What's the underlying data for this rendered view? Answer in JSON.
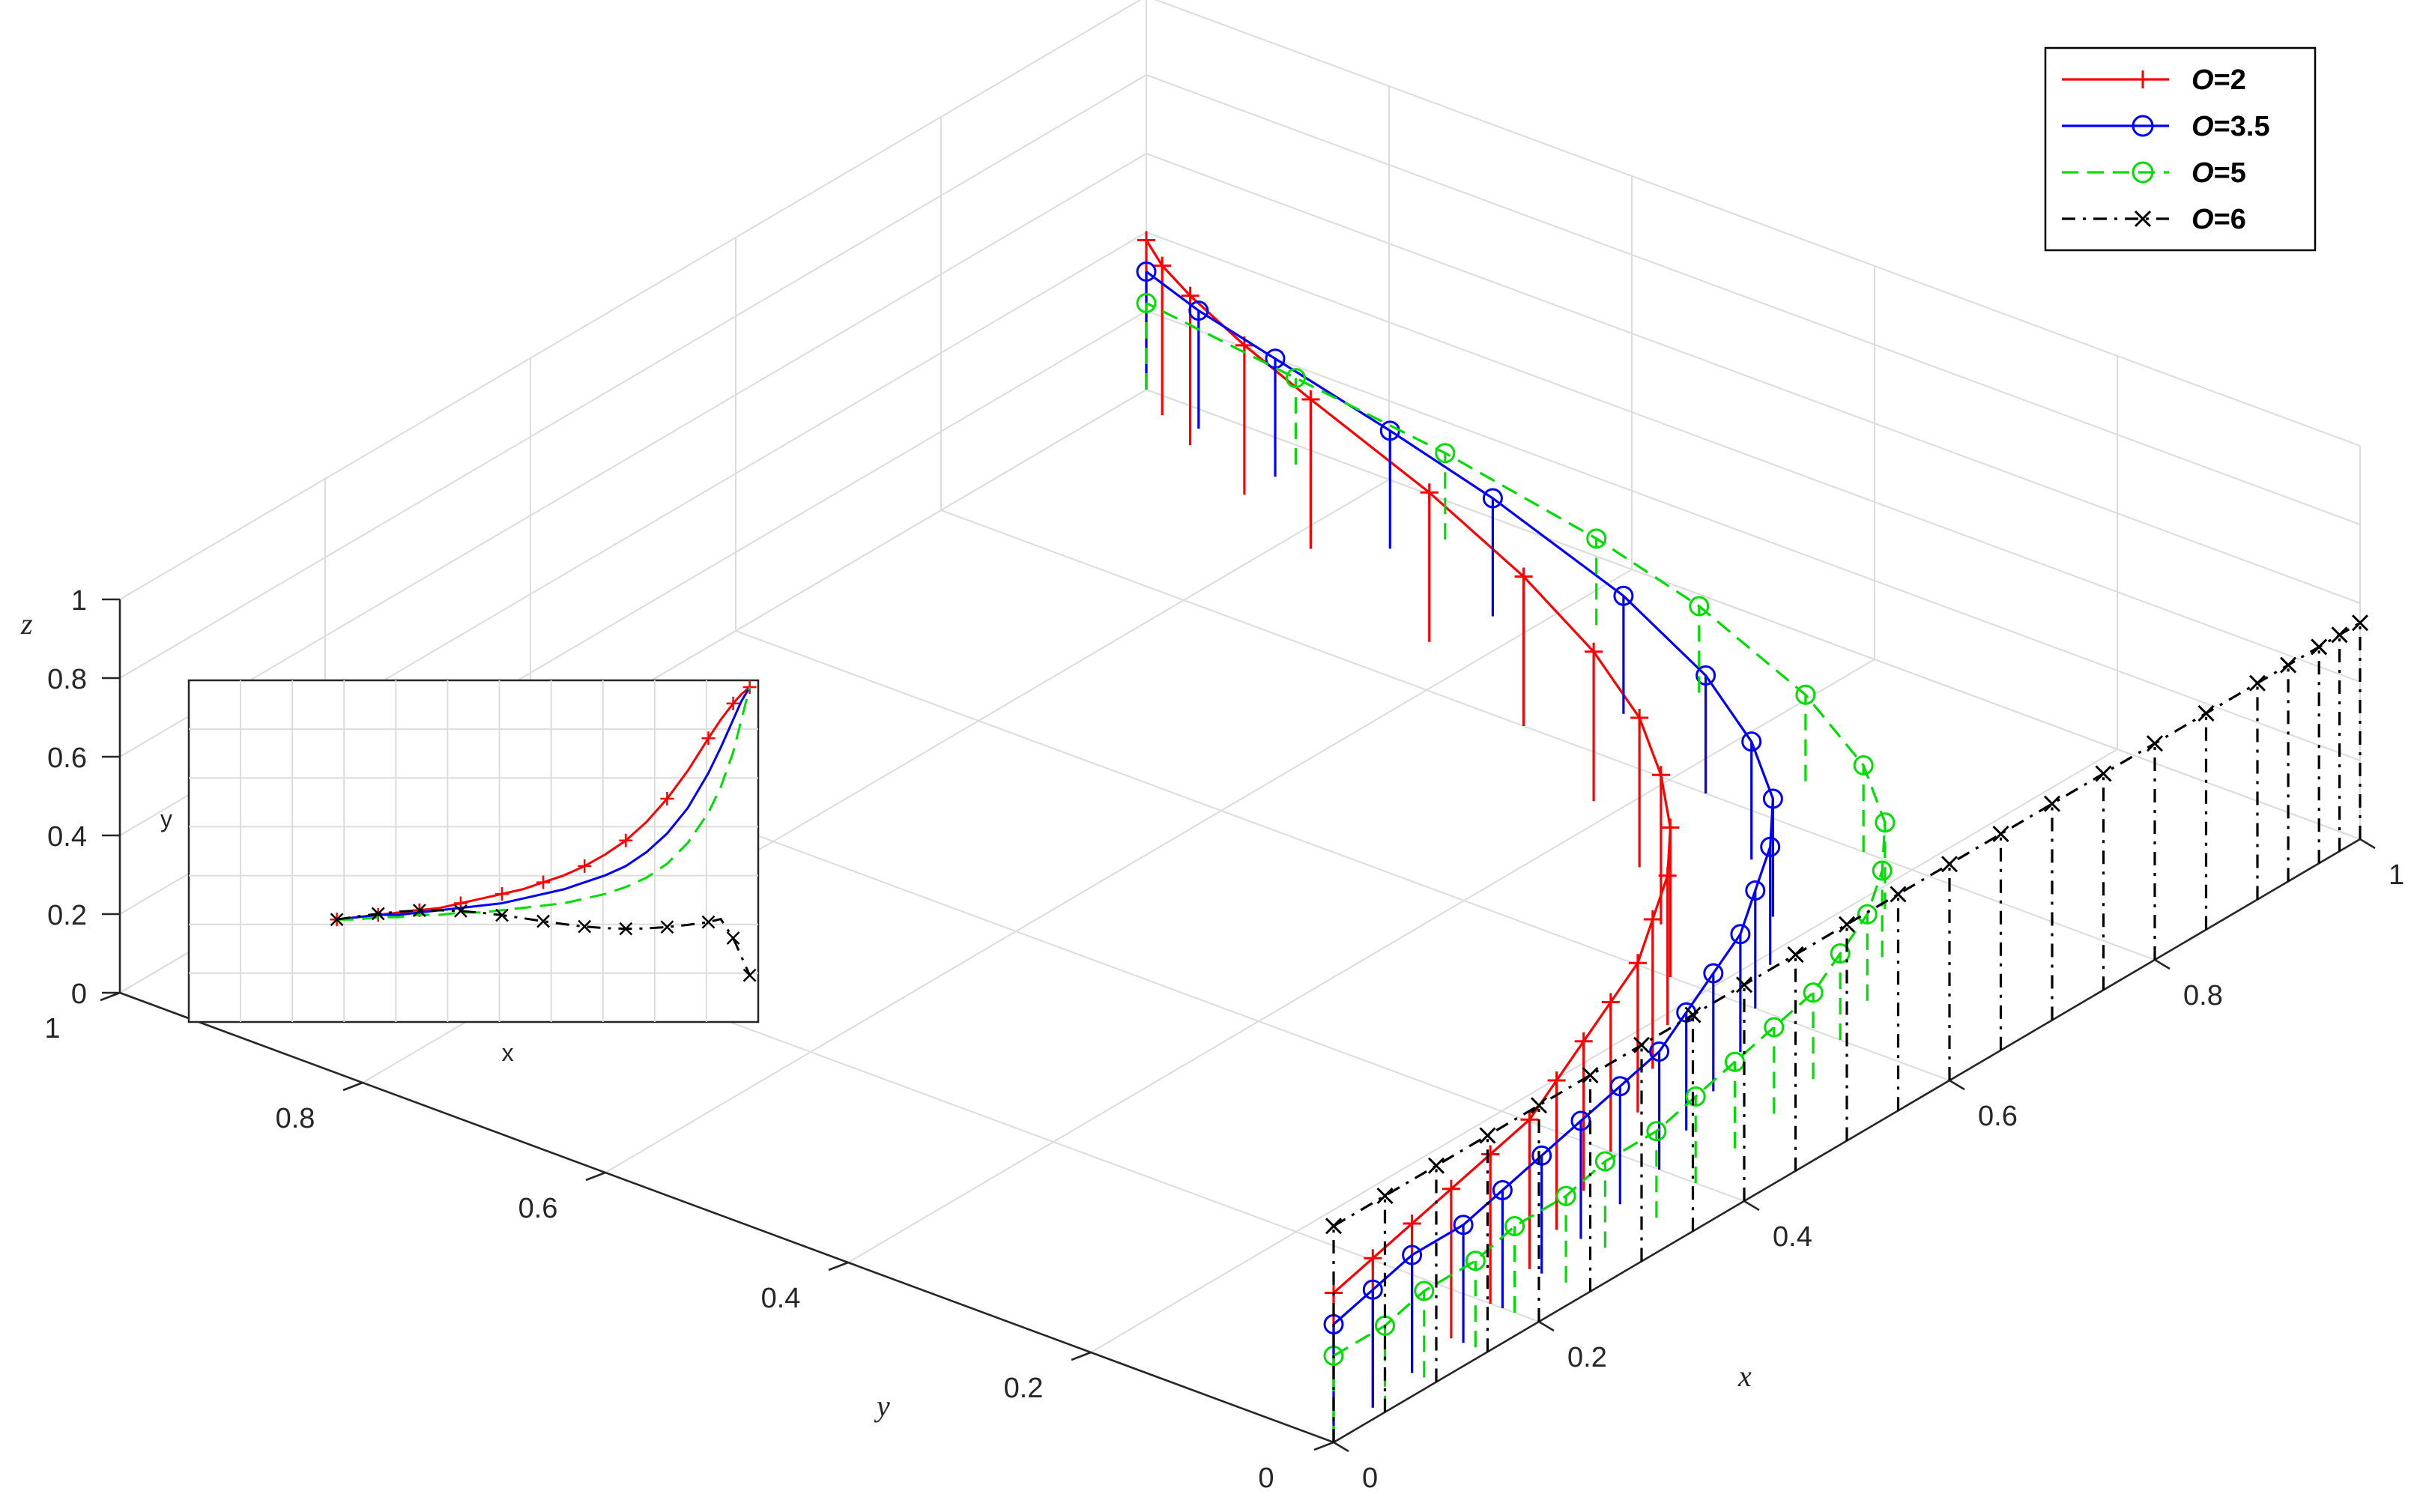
{
  "chart_data": {
    "type": "line",
    "dimensions": 3,
    "axes": {
      "x": {
        "label": "x",
        "range": [
          0,
          1
        ],
        "ticks": [
          "0",
          "0.2",
          "0.4",
          "0.6",
          "0.8",
          "1"
        ]
      },
      "y": {
        "label": "y",
        "range": [
          0,
          1
        ],
        "ticks": [
          "0",
          "0.2",
          "0.4",
          "0.6",
          "0.8",
          "1"
        ]
      },
      "z": {
        "label": "z",
        "range": [
          0,
          1
        ],
        "ticks": [
          "0",
          "0.2",
          "0.4",
          "0.6",
          "0.8",
          "1"
        ]
      }
    },
    "grid": true,
    "legend_position": "top-right",
    "legend": [
      {
        "prefix": "O",
        "label": "=2",
        "color": "#ff0000",
        "line_style": "solid",
        "marker": "plus"
      },
      {
        "prefix": "O",
        "label": "=3.5",
        "color": "#0000ff",
        "line_style": "solid",
        "marker": "circle"
      },
      {
        "prefix": "O",
        "label": "=5",
        "color": "#00dd00",
        "line_style": "dashed",
        "marker": "circle"
      },
      {
        "prefix": "O",
        "label": "=6",
        "color": "#000000",
        "line_style": "dash-dot",
        "marker": "x"
      }
    ],
    "x": [
      0.0,
      0.05,
      0.1,
      0.15,
      0.2,
      0.25,
      0.3,
      0.35,
      0.4,
      0.45,
      0.5,
      0.55,
      0.6,
      0.65,
      0.7,
      0.75,
      0.8,
      0.85,
      0.9,
      0.93,
      0.96,
      0.98,
      1.0
    ],
    "series": [
      {
        "name": "O=2",
        "y": [
          0.0,
          0.01,
          0.02,
          0.03,
          0.04,
          0.05,
          0.07,
          0.09,
          0.11,
          0.13,
          0.16,
          0.19,
          0.23,
          0.28,
          0.34,
          0.42,
          0.52,
          0.64,
          0.78,
          0.86,
          0.93,
          0.97,
          1.0
        ],
        "z": 0.38
      },
      {
        "name": "O=3.5",
        "y": [
          0.0,
          0.01,
          0.02,
          0.02,
          0.03,
          0.04,
          0.05,
          0.06,
          0.07,
          0.09,
          0.11,
          0.13,
          0.16,
          0.19,
          0.23,
          0.29,
          0.37,
          0.48,
          0.63,
          0.74,
          0.86,
          0.94,
          1.0
        ],
        "z": 0.3
      },
      {
        "name": "O=5",
        "y": [
          0.0,
          0.0,
          0.01,
          0.01,
          0.02,
          0.02,
          0.03,
          0.03,
          0.04,
          0.05,
          0.06,
          0.07,
          0.09,
          0.11,
          0.14,
          0.18,
          0.24,
          0.33,
          0.46,
          0.57,
          0.72,
          0.86,
          1.0
        ],
        "z": 0.22
      },
      {
        "name": "O=6",
        "y": [
          0.0,
          0.0,
          0.0,
          0.0,
          0.0,
          0.0,
          0.0,
          0.0,
          0.0,
          0.0,
          0.0,
          0.0,
          0.0,
          0.0,
          0.0,
          0.0,
          0.0,
          0.0,
          0.0,
          0.0,
          0.0,
          0.0,
          0.0
        ],
        "z": 0.55
      }
    ],
    "inset": {
      "xlabel": "x",
      "ylabel": "y",
      "grid": true
    }
  }
}
